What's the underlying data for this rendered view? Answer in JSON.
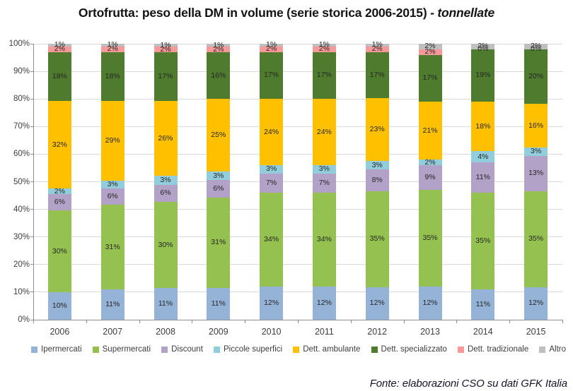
{
  "title": {
    "main": "Ortofrutta: peso della DM in volume (serie storica 2006-2015) - ",
    "emphasis": "tonnellate"
  },
  "footer": {
    "source": "Fonte: elaborazioni CSO su dati GFK Italia"
  },
  "colors": {
    "grid": "#d9d9d9",
    "axis": "#8e8e8e"
  },
  "chart_data": {
    "type": "bar",
    "stacked": true,
    "percent_stacked": true,
    "title": "Ortofrutta: peso della DM in volume (serie storica 2006-2015) - tonnellate",
    "xlabel": "",
    "ylabel": "",
    "ylim": [
      0,
      100
    ],
    "grid": true,
    "legend_position": "bottom",
    "y_ticks": [
      "0%",
      "10%",
      "20%",
      "30%",
      "40%",
      "50%",
      "60%",
      "70%",
      "80%",
      "90%",
      "100%"
    ],
    "categories": [
      "2006",
      "2007",
      "2008",
      "2009",
      "2010",
      "2011",
      "2012",
      "2013",
      "2014",
      "2015"
    ],
    "series": [
      {
        "name": "Ipermercati",
        "color": "#95B3D7",
        "values": [
          10,
          11,
          11,
          11,
          12,
          12,
          12,
          12,
          11,
          12
        ]
      },
      {
        "name": "Supermercati",
        "color": "#94C14F",
        "values": [
          30,
          31,
          30,
          31,
          34,
          34,
          35,
          35,
          35,
          35
        ]
      },
      {
        "name": "Discount",
        "color": "#B2A2C7",
        "values": [
          6,
          6,
          6,
          6,
          7,
          7,
          8,
          9,
          11,
          13
        ]
      },
      {
        "name": "Piccole superfici",
        "color": "#92CDDC",
        "values": [
          2,
          3,
          3,
          3,
          3,
          3,
          3,
          2,
          4,
          3
        ]
      },
      {
        "name": "Dett. ambulante",
        "color": "#FFC000",
        "values": [
          32,
          29,
          26,
          25,
          24,
          24,
          23,
          21,
          18,
          16
        ]
      },
      {
        "name": "Dett. specializzato",
        "color": "#4F7B2E",
        "values": [
          18,
          18,
          17,
          16,
          17,
          17,
          17,
          17,
          19,
          20
        ]
      },
      {
        "name": "Dett. tradizionale",
        "color": "#F79999",
        "values": [
          2,
          2,
          2,
          2,
          2,
          2,
          2,
          2,
          0,
          0
        ]
      },
      {
        "name": "Altro",
        "color": "#BFBFBF",
        "values": [
          1,
          1,
          1,
          1,
          1,
          1,
          1,
          2,
          2,
          2
        ]
      }
    ]
  }
}
